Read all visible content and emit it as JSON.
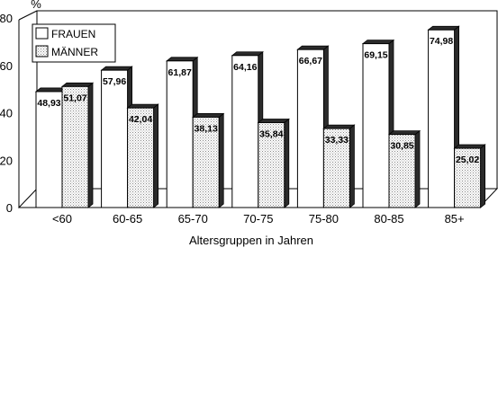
{
  "chart_data": {
    "type": "bar",
    "y_unit_label": "%",
    "xlabel": "Altersgruppen in Jahren",
    "ylabel": "",
    "ylim": [
      0,
      80
    ],
    "y_ticks": [
      "0",
      "20",
      "40",
      "60",
      "80"
    ],
    "grid": false,
    "legend_position": "top-left",
    "categories": [
      "<60",
      "60-65",
      "65-70",
      "70-75",
      "75-80",
      "80-85",
      "85+"
    ],
    "series": [
      {
        "name": "FRAUEN",
        "values": [
          48.93,
          57.96,
          61.87,
          64.16,
          66.67,
          69.15,
          74.98
        ],
        "labels": [
          "48,93",
          "57,96",
          "61,87",
          "64,16",
          "66,67",
          "69,15",
          "74,98"
        ],
        "fill": "#ffffff"
      },
      {
        "name": "MÄNNER",
        "values": [
          51.07,
          42.04,
          38.13,
          35.84,
          33.33,
          30.85,
          25.02
        ],
        "labels": [
          "51,07",
          "42,04",
          "38,13",
          "35,84",
          "33,33",
          "30,85",
          "25,02"
        ],
        "fill": "dotted"
      }
    ],
    "colors": {
      "bar_side": "#2b2b2b",
      "dot": "#8a8a8a",
      "frame": "#000000"
    }
  }
}
